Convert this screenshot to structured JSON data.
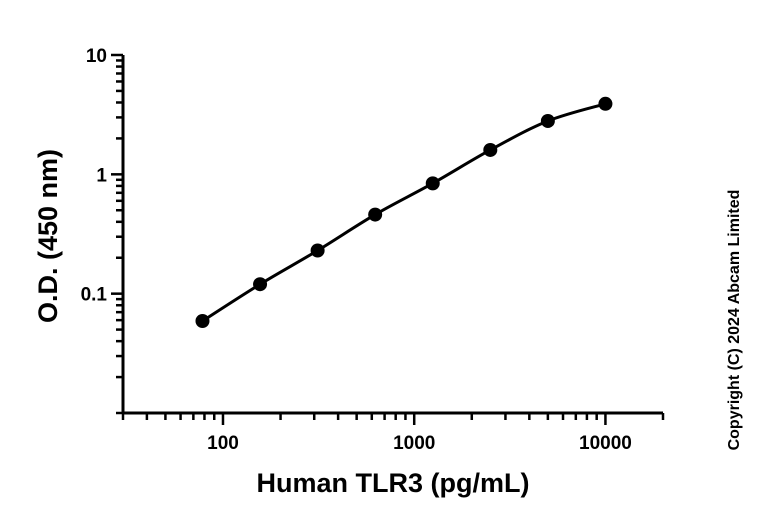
{
  "chart_data": {
    "type": "scatter",
    "x_scale": "log",
    "y_scale": "log",
    "xlabel": "Human TLR3 (pg/mL)",
    "ylabel": "O.D. (450 nm)",
    "xlim": [
      30,
      20000
    ],
    "ylim": [
      0.01,
      10
    ],
    "x_ticks": [
      100,
      1000,
      10000
    ],
    "x_tick_labels": [
      "100",
      "1000",
      "10000"
    ],
    "y_ticks": [
      0.1,
      1,
      10
    ],
    "y_tick_labels": [
      "0.1",
      "1",
      "10"
    ],
    "grid": false,
    "legend": "none",
    "series": [
      {
        "x": [
          78.125,
          156.25,
          312.5,
          625,
          1250,
          2500,
          5000,
          10000
        ],
        "y": [
          0.059,
          0.12,
          0.23,
          0.46,
          0.84,
          1.6,
          2.8,
          3.9
        ],
        "fit_line": true,
        "marker": "circle",
        "color": "#000000"
      }
    ]
  },
  "copyright": "Copyright (C) 2024 Abcam Limited"
}
